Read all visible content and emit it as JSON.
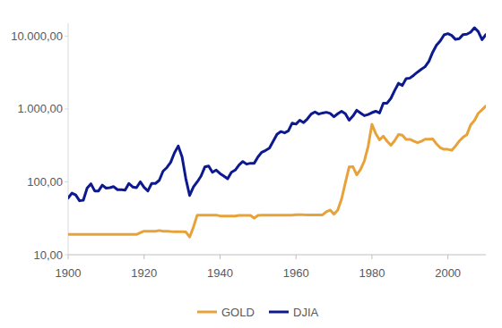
{
  "chart_data": {
    "type": "line",
    "log": "y",
    "grid": false,
    "legend": "bottom",
    "x": [
      1900,
      1901,
      1902,
      1903,
      1904,
      1905,
      1906,
      1907,
      1908,
      1909,
      1910,
      1911,
      1912,
      1913,
      1914,
      1915,
      1916,
      1917,
      1918,
      1919,
      1920,
      1921,
      1922,
      1923,
      1924,
      1925,
      1926,
      1927,
      1928,
      1929,
      1930,
      1931,
      1932,
      1933,
      1934,
      1935,
      1936,
      1937,
      1938,
      1939,
      1940,
      1941,
      1942,
      1943,
      1944,
      1945,
      1946,
      1947,
      1948,
      1949,
      1950,
      1951,
      1952,
      1953,
      1954,
      1955,
      1956,
      1957,
      1958,
      1959,
      1960,
      1961,
      1962,
      1963,
      1964,
      1965,
      1966,
      1967,
      1968,
      1969,
      1970,
      1971,
      1972,
      1973,
      1974,
      1975,
      1976,
      1977,
      1978,
      1979,
      1980,
      1981,
      1982,
      1983,
      1984,
      1985,
      1986,
      1987,
      1988,
      1989,
      1990,
      1991,
      1992,
      1993,
      1994,
      1995,
      1996,
      1997,
      1998,
      1999,
      2000,
      2001,
      2002,
      2003,
      2004,
      2005,
      2006,
      2007,
      2008,
      2009,
      2010
    ],
    "xlim": [
      1900,
      2010
    ],
    "xticks": [
      1900,
      1920,
      1940,
      1960,
      1980,
      2000
    ],
    "ylim": [
      10,
      15000
    ],
    "yticks": [
      {
        "value": 10,
        "label": "10,00"
      },
      {
        "value": 100,
        "label": "100,00"
      },
      {
        "value": 1000,
        "label": "1.000,00"
      },
      {
        "value": 10000,
        "label": "10.000,00"
      }
    ],
    "series": [
      {
        "name": "GOLD",
        "color": "#e8a23a",
        "values": [
          19,
          19,
          19,
          19,
          19,
          19,
          19,
          19,
          19,
          19,
          19,
          19,
          19,
          19,
          19,
          19,
          19,
          19,
          19,
          20,
          21,
          21,
          21,
          21,
          21.5,
          21,
          21,
          20.8,
          20.7,
          20.7,
          20.7,
          20.5,
          17.5,
          24,
          35,
          35,
          35,
          35,
          35,
          35,
          34,
          34,
          34,
          34,
          34,
          34.7,
          34.7,
          34.7,
          34.7,
          31.7,
          34.7,
          35,
          35,
          35,
          35,
          35,
          35,
          35,
          35,
          35,
          35.3,
          35.5,
          35.3,
          35.2,
          35.2,
          35.1,
          35.1,
          35.2,
          39,
          41,
          36,
          41,
          58,
          97,
          160,
          161,
          125,
          148,
          193,
          306,
          615,
          460,
          376,
          424,
          361,
          317,
          368,
          447,
          437,
          381,
          383,
          362,
          344,
          360,
          384,
          384,
          388,
          331,
          294,
          279,
          279,
          271,
          310,
          363,
          409,
          444,
          603,
          695,
          872,
          972,
          1100
        ]
      },
      {
        "name": "DJIA",
        "color": "#0d1a8f",
        "values": [
          60,
          70,
          66,
          55,
          56,
          82,
          94,
          75,
          75,
          90,
          82,
          83,
          86,
          78,
          78,
          77,
          95,
          85,
          83,
          100,
          84,
          75,
          95,
          95,
          105,
          140,
          157,
          185,
          250,
          310,
          220,
          110,
          65,
          85,
          100,
          120,
          160,
          165,
          135,
          145,
          130,
          120,
          110,
          135,
          145,
          170,
          190,
          175,
          180,
          180,
          220,
          255,
          270,
          290,
          360,
          450,
          490,
          470,
          500,
          640,
          620,
          700,
          650,
          730,
          850,
          910,
          850,
          880,
          900,
          870,
          780,
          860,
          930,
          860,
          700,
          800,
          960,
          880,
          810,
          840,
          890,
          930,
          880,
          1200,
          1200,
          1400,
          1800,
          2250,
          2100,
          2600,
          2650,
          2900,
          3200,
          3500,
          3800,
          4500,
          6000,
          7500,
          8600,
          10400,
          10800,
          10200,
          9000,
          9200,
          10500,
          10600,
          11300,
          13000,
          11500,
          8900,
          10500
        ]
      }
    ]
  }
}
